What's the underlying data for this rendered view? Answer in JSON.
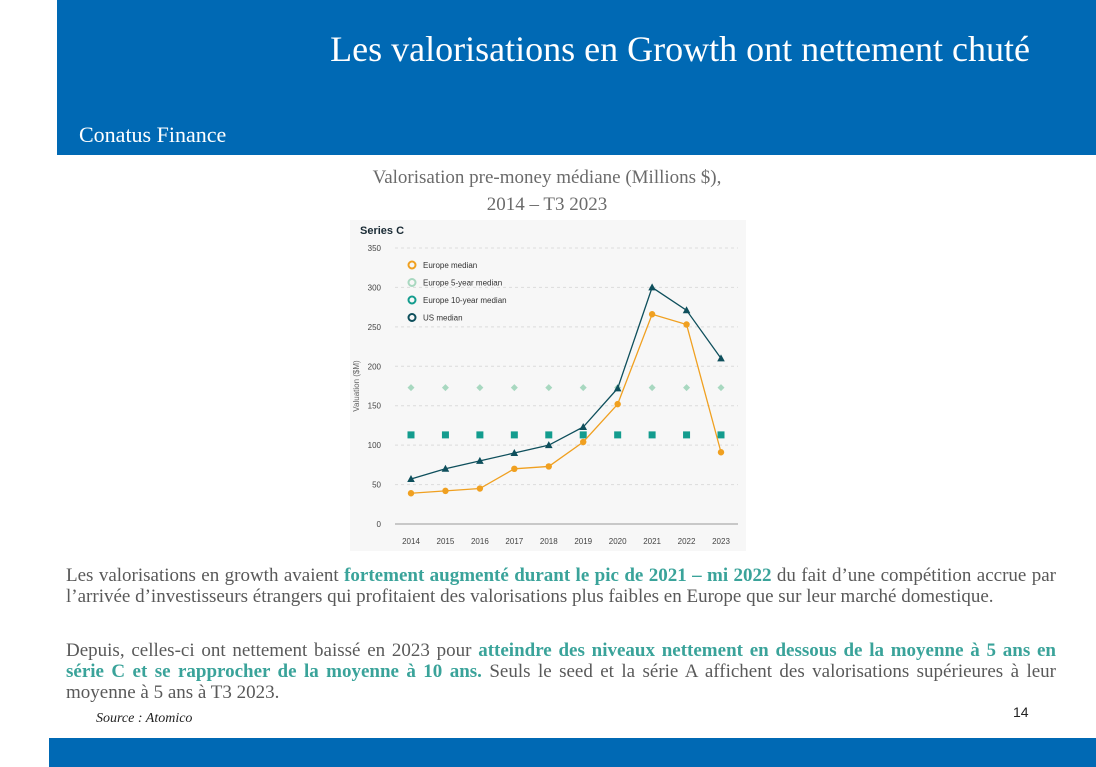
{
  "slide": {
    "title": "Les valorisations en Growth ont nettement chuté",
    "brand": "Conatus Finance",
    "chart_caption_line1": "Valorisation pre-money médiane (Millions $),",
    "chart_caption_line2": "2014 – T3 2023",
    "paragraph1": {
      "part1": "Les valorisations en growth avaient ",
      "highlight": "fortement augmenté durant le pic de 2021 – mi 2022",
      "part2": " du fait d’une compétition accrue par l’arrivée d’investisseurs étrangers qui profitaient des valorisations plus faibles en Europe que sur leur marché domestique."
    },
    "paragraph2": {
      "part1": "Depuis, celles-ci ont nettement baissé en 2023 pour ",
      "highlight": "atteindre des niveaux nettement en dessous de la moyenne à 5 ans en série C et se rapprocher de la moyenne à 10 ans.",
      "part2": " Seuls le seed et la série A affichent des valorisations supérieures à leur moyenne à 5 ans à T3 2023."
    },
    "source": "Source : Atomico",
    "page_number": "14",
    "colors": {
      "brand_blue": "#0069b4",
      "highlight": "#3aa39a"
    }
  },
  "chart_data": {
    "type": "line",
    "title": "Series C",
    "ylabel": "Valuation ($M)",
    "xlabel": "",
    "ylim": [
      0,
      350
    ],
    "yticks": [
      0,
      50,
      100,
      150,
      200,
      250,
      300,
      350
    ],
    "categories": [
      "2014",
      "2015",
      "2016",
      "2017",
      "2018",
      "2019",
      "2020",
      "2021",
      "2022",
      "2023"
    ],
    "grid": "horizontal dashed",
    "legend_position": "top-left",
    "series": [
      {
        "name": "Europe median",
        "color": "#f0a020",
        "marker": "circle",
        "values": [
          39,
          42,
          45,
          70,
          73,
          104,
          152,
          266,
          253,
          91
        ]
      },
      {
        "name": "Europe 5-year median",
        "color": "#a8d8c0",
        "marker": "diamond",
        "values": [
          173,
          173,
          173,
          173,
          173,
          173,
          173,
          173,
          173,
          173
        ]
      },
      {
        "name": "Europe 10-year median",
        "color": "#139c8e",
        "marker": "square",
        "values": [
          113,
          113,
          113,
          113,
          113,
          113,
          113,
          113,
          113,
          113
        ]
      },
      {
        "name": "US median",
        "color": "#0e4f5c",
        "marker": "triangle",
        "values": [
          57,
          70,
          80,
          90,
          100,
          123,
          172,
          300,
          271,
          210
        ]
      }
    ]
  }
}
